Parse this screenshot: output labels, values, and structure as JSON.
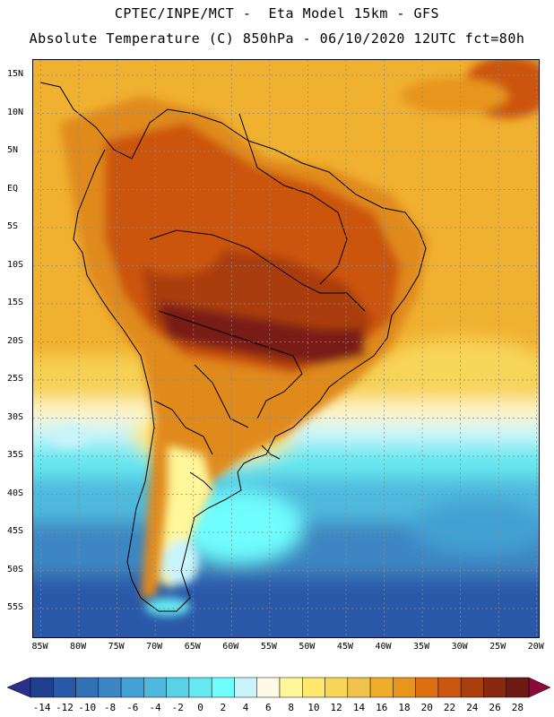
{
  "header": {
    "line1": "CPTEC/INPE/MCT -  Eta Model 15km - GFS",
    "line2": "Absolute Temperature (C) 850hPa - 06/10/2020 12UTC fct=80h"
  },
  "map": {
    "lat_labels": [
      "15N",
      "10N",
      "5N",
      "EQ",
      "5S",
      "10S",
      "15S",
      "20S",
      "25S",
      "30S",
      "35S",
      "40S",
      "45S",
      "50S",
      "55S"
    ],
    "lat_values": [
      15,
      10,
      5,
      0,
      -5,
      -10,
      -15,
      -20,
      -25,
      -30,
      -35,
      -40,
      -45,
      -50,
      -55
    ],
    "lon_labels": [
      "85W",
      "80W",
      "75W",
      "70W",
      "65W",
      "60W",
      "55W",
      "50W",
      "45W",
      "40W",
      "35W",
      "30W",
      "25W",
      "20W"
    ],
    "lon_values": [
      -85,
      -80,
      -75,
      -70,
      -65,
      -60,
      -55,
      -50,
      -45,
      -40,
      -35,
      -30,
      -25,
      -20
    ],
    "lon_range": [
      -86,
      -19.5
    ],
    "lat_range": [
      -59,
      17
    ]
  },
  "colorbar": {
    "ticks": [
      "-14",
      "-12",
      "-10",
      "-8",
      "-6",
      "-4",
      "-2",
      "0",
      "2",
      "4",
      "6",
      "8",
      "10",
      "12",
      "14",
      "16",
      "18",
      "20",
      "22",
      "24",
      "26",
      "28"
    ],
    "colors": [
      "#1f3f8f",
      "#2a58a8",
      "#3470b6",
      "#3c86c3",
      "#43a1d4",
      "#4fb9dd",
      "#5ad2e6",
      "#66e8f0",
      "#6ffdfd",
      "#c8f4fb",
      "#fff9e6",
      "#fff79a",
      "#fde86e",
      "#f8d65a",
      "#f0c34a",
      "#eeae2c",
      "#e7951f",
      "#dd6f10",
      "#cc550f",
      "#aa3e0c",
      "#8a2810",
      "#6e1a14"
    ],
    "under_color": "#2a2f8a",
    "over_color": "#8b0a3a"
  }
}
